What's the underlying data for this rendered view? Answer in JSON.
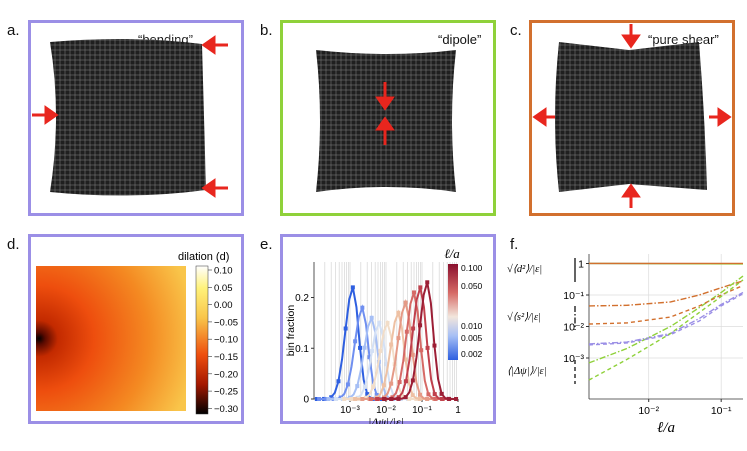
{
  "figure": {
    "panels": {
      "a": {
        "label": "a.",
        "caption": "“bending”"
      },
      "b": {
        "label": "b.",
        "caption": "“dipole”"
      },
      "c": {
        "label": "c.",
        "caption": "“pure shear”"
      },
      "d": {
        "label": "d.",
        "colorbar_title": "dilation (d)",
        "colorbar_ticks": [
          "0.10",
          "0.05",
          "0.00",
          "−0.05",
          "−0.10",
          "−0.15",
          "−0.20",
          "−0.25",
          "−0.30"
        ]
      },
      "e": {
        "label": "e."
      },
      "f": {
        "label": "f."
      }
    },
    "colors": {
      "purple": "#9b8fe6",
      "green": "#8fd13a",
      "orange": "#d2702e",
      "arrow": "#e8261e",
      "lattice": "#1a1a1a"
    }
  },
  "chart_data": [
    {
      "type": "line",
      "panel": "e",
      "xlabel": "|Δψ|/|ε|",
      "ylabel": "bin fraction",
      "xscale": "log",
      "xlim": [
        0.0001,
        1
      ],
      "ylim": [
        0,
        0.27
      ],
      "xticks": [
        "10⁻³",
        "10⁻²",
        "10⁻¹",
        "1"
      ],
      "yticks": [
        "0",
        "0.1",
        "0.2"
      ],
      "legend_title": "ℓ/a",
      "legend_ticks": [
        "0.100",
        "0.050",
        "0.010",
        "0.005",
        "0.002"
      ],
      "series": [
        {
          "name": "ℓ/a=0.002",
          "peak_x": 0.0012,
          "peak_y": 0.22,
          "color": "#2e5fe0"
        },
        {
          "name": "ℓ/a=0.003",
          "peak_x": 0.0022,
          "peak_y": 0.18,
          "color": "#6f8ff0"
        },
        {
          "name": "ℓ/a=0.005",
          "peak_x": 0.004,
          "peak_y": 0.16,
          "color": "#a6bff5"
        },
        {
          "name": "ℓ/a=0.007",
          "peak_x": 0.0065,
          "peak_y": 0.15,
          "color": "#d3e0f5"
        },
        {
          "name": "ℓ/a=0.010",
          "peak_x": 0.011,
          "peak_y": 0.15,
          "color": "#f2ddc8"
        },
        {
          "name": "ℓ/a=0.020",
          "peak_x": 0.022,
          "peak_y": 0.17,
          "color": "#eec1a4"
        },
        {
          "name": "ℓ/a=0.030",
          "peak_x": 0.035,
          "peak_y": 0.19,
          "color": "#e59a86"
        },
        {
          "name": "ℓ/a=0.050",
          "peak_x": 0.06,
          "peak_y": 0.21,
          "color": "#d66a66"
        },
        {
          "name": "ℓ/a=0.070",
          "peak_x": 0.09,
          "peak_y": 0.22,
          "color": "#c0404c"
        },
        {
          "name": "ℓ/a=0.100",
          "peak_x": 0.14,
          "peak_y": 0.23,
          "color": "#9c1e35"
        }
      ]
    },
    {
      "type": "line",
      "panel": "f",
      "xlabel": "ℓ/a",
      "xscale": "log",
      "yscale": "log",
      "xlim": [
        0.0015,
        0.2
      ],
      "ylim": [
        5e-05,
        2
      ],
      "xticks": [
        "10⁻²",
        "10⁻¹"
      ],
      "yticks": [
        "1",
        "10⁻¹",
        "10⁻²",
        "10⁻³"
      ],
      "legend": [
        "√⟨d²⟩/|ε|",
        "√⟨s²⟩/|ε|",
        "⟨|Δψ|⟩/|ε|"
      ],
      "series": [
        {
          "name": "d bending",
          "color": "#9b8fe6",
          "style": "solid",
          "x": [
            0.0015,
            0.2
          ],
          "y": [
            1.0,
            0.98
          ]
        },
        {
          "name": "d dipole",
          "color": "#8fd13a",
          "style": "solid",
          "x": [
            0.0015,
            0.2
          ],
          "y": [
            1.0,
            0.97
          ]
        },
        {
          "name": "d shear",
          "color": "#d2702e",
          "style": "solid",
          "x": [
            0.0015,
            0.2
          ],
          "y": [
            1.0,
            1.0
          ]
        },
        {
          "name": "s shear",
          "color": "#d2702e",
          "style": "dashdot",
          "x": [
            0.0015,
            0.005,
            0.02,
            0.05,
            0.1,
            0.2
          ],
          "y": [
            0.045,
            0.047,
            0.06,
            0.1,
            0.17,
            0.28
          ]
        },
        {
          "name": "s bending",
          "color": "#9b8fe6",
          "style": "dashdot",
          "x": [
            0.0015,
            0.005,
            0.02,
            0.05,
            0.1,
            0.2
          ],
          "y": [
            0.0028,
            0.0032,
            0.006,
            0.018,
            0.05,
            0.12
          ]
        },
        {
          "name": "s dipole",
          "color": "#8fd13a",
          "style": "dashdot",
          "x": [
            0.0015,
            0.005,
            0.02,
            0.05,
            0.1,
            0.2
          ],
          "y": [
            0.0007,
            0.002,
            0.01,
            0.04,
            0.12,
            0.4
          ]
        },
        {
          "name": "psi shear",
          "color": "#d2702e",
          "style": "dashed",
          "x": [
            0.0015,
            0.005,
            0.02,
            0.05,
            0.1,
            0.2
          ],
          "y": [
            0.012,
            0.013,
            0.02,
            0.045,
            0.1,
            0.2
          ]
        },
        {
          "name": "psi bending",
          "color": "#9b8fe6",
          "style": "dashed",
          "x": [
            0.0015,
            0.005,
            0.02,
            0.05,
            0.1,
            0.2
          ],
          "y": [
            0.0026,
            0.003,
            0.0055,
            0.015,
            0.045,
            0.11
          ]
        },
        {
          "name": "psi dipole",
          "color": "#8fd13a",
          "style": "dashed",
          "x": [
            0.0015,
            0.005,
            0.02,
            0.05,
            0.1,
            0.2
          ],
          "y": [
            0.0002,
            0.0009,
            0.006,
            0.028,
            0.09,
            0.3
          ]
        }
      ]
    }
  ]
}
